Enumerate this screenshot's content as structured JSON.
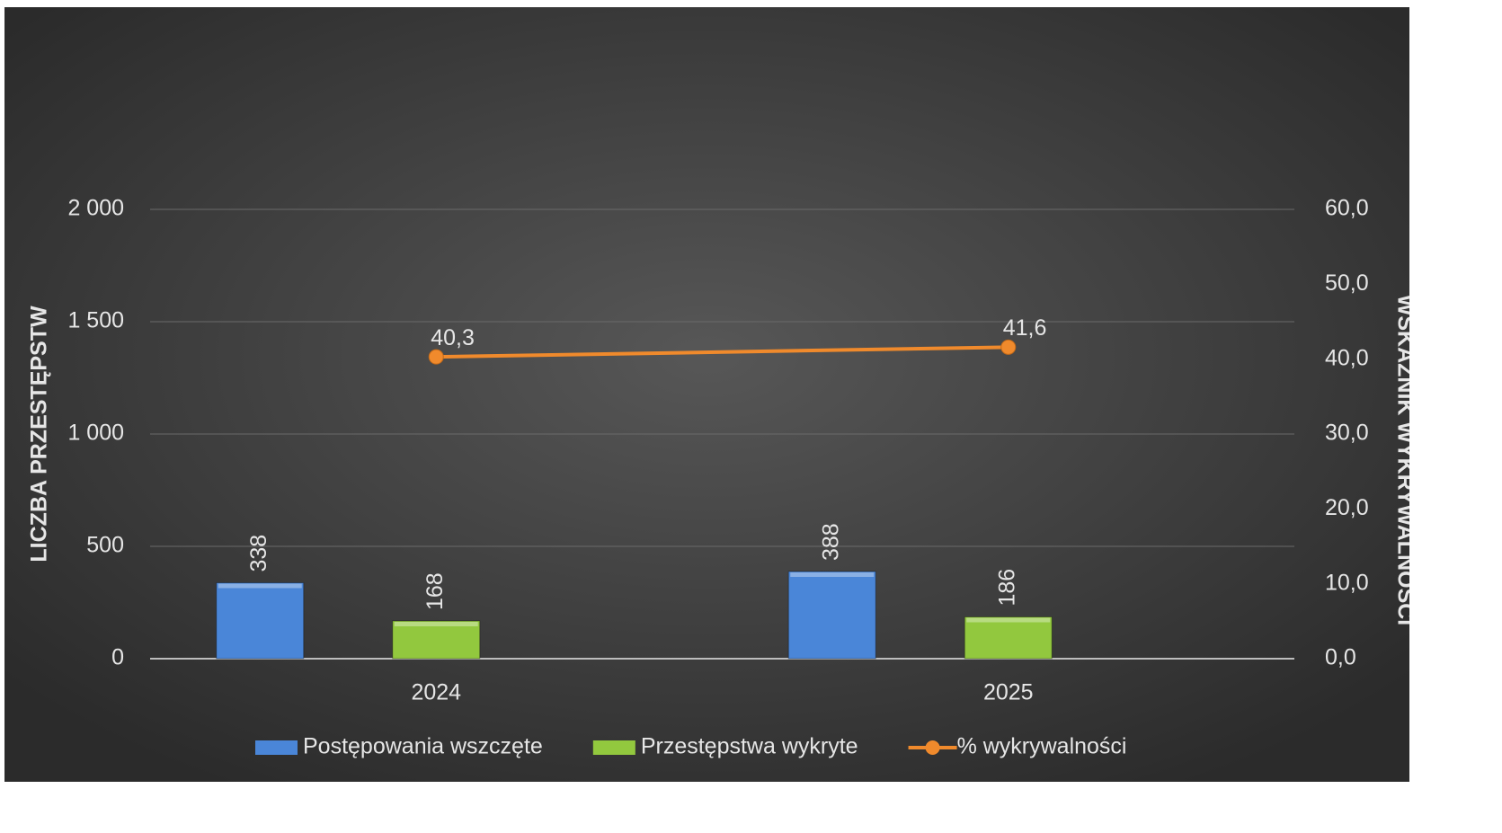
{
  "chart_data": {
    "type": "bar",
    "categories": [
      "2024",
      "2025"
    ],
    "series": [
      {
        "name": "Postępowania wszczęte",
        "color": "#4a86d8",
        "values": [
          338,
          388
        ]
      },
      {
        "name": "Przestępstwa wykryte",
        "color": "#92c83e",
        "values": [
          168,
          186
        ]
      },
      {
        "name": "% wykrywalności",
        "color": "#f08a2c",
        "type": "line",
        "axis": "y2",
        "values": [
          40.3,
          41.6
        ],
        "value_labels": [
          "40,3",
          "41,6"
        ]
      }
    ],
    "y_label": "LICZBA PRZESTĘPSTW",
    "y2_label": "WSKAŹNIK WYKRYWALNOŚCI",
    "ylim": [
      0,
      2000
    ],
    "yticks": [
      0,
      500,
      {
        "value": 1000,
        "label": "1 000"
      },
      {
        "value": 1500,
        "label": "1 500"
      },
      {
        "value": 2000,
        "label": "2 000"
      }
    ],
    "y2lim": [
      0,
      60
    ],
    "y2ticks": [
      {
        "value": 0,
        "label": "0,0"
      },
      {
        "value": 10,
        "label": "10,0"
      },
      {
        "value": 20,
        "label": "20,0"
      },
      {
        "value": 30,
        "label": "30,0"
      },
      {
        "value": 40,
        "label": "40,0"
      },
      {
        "value": 50,
        "label": "50,0"
      },
      {
        "value": 60,
        "label": "60,0"
      }
    ],
    "grid": true,
    "legend": "bottom"
  }
}
